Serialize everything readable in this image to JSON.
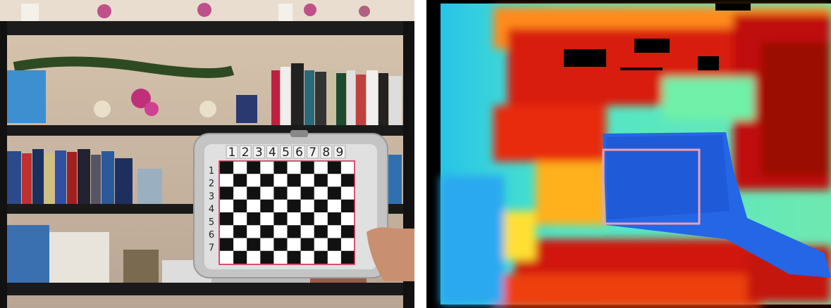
{
  "board": {
    "column_labels": [
      "1",
      "2",
      "3",
      "4",
      "5",
      "6",
      "7",
      "8",
      "9"
    ],
    "row_labels": [
      "1",
      "2",
      "3",
      "4",
      "5",
      "6",
      "7"
    ]
  }
}
